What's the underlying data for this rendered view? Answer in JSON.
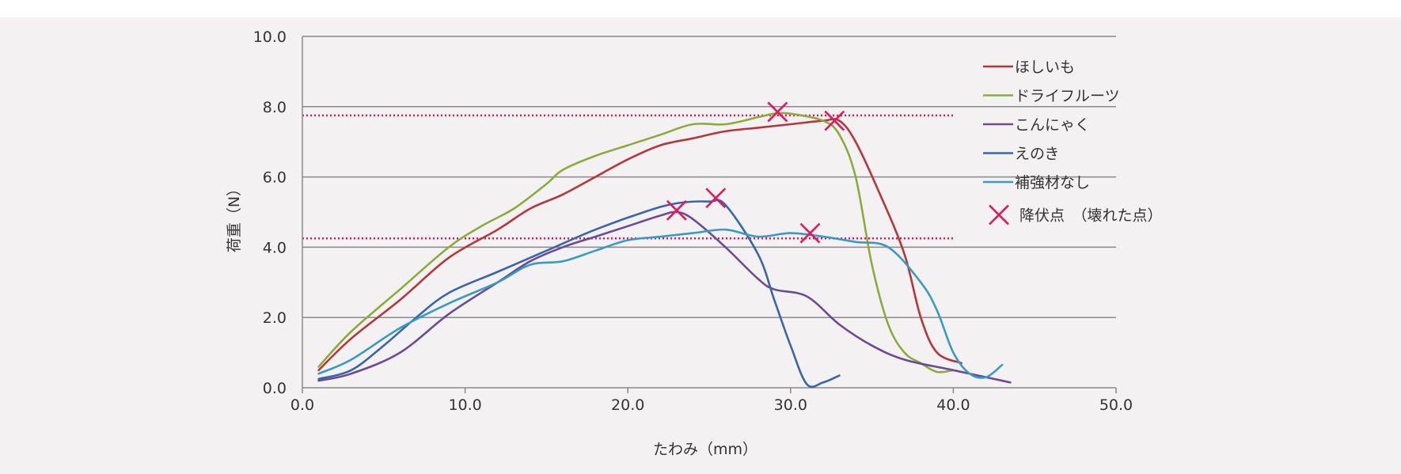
{
  "chart_data": {
    "type": "line",
    "title": "",
    "xlabel": "たわみ（mm）",
    "ylabel": "荷重（N）",
    "xlim": [
      0,
      50
    ],
    "ylim": [
      0,
      10
    ],
    "xticks": [
      "0.0",
      "10.0",
      "20.0",
      "30.0",
      "40.0",
      "50.0"
    ],
    "yticks": [
      "0.0",
      "2.0",
      "4.0",
      "6.0",
      "8.0",
      "10.0"
    ],
    "grid": "horizontal",
    "legend_position": "right",
    "series": [
      {
        "name": "ほしいも",
        "color": "#b5373b",
        "points": [
          [
            1,
            0.5
          ],
          [
            3,
            1.4
          ],
          [
            6,
            2.5
          ],
          [
            9,
            3.7
          ],
          [
            12,
            4.5
          ],
          [
            14,
            5.1
          ],
          [
            16,
            5.5
          ],
          [
            18,
            6.0
          ],
          [
            20,
            6.5
          ],
          [
            22,
            6.9
          ],
          [
            24,
            7.1
          ],
          [
            26,
            7.3
          ],
          [
            28,
            7.4
          ],
          [
            30,
            7.5
          ],
          [
            32,
            7.6
          ],
          [
            33,
            7.6
          ],
          [
            34,
            7.0
          ],
          [
            35.5,
            5.5
          ],
          [
            37,
            3.8
          ],
          [
            38,
            2.0
          ],
          [
            39,
            1.0
          ],
          [
            40.5,
            0.7
          ]
        ]
      },
      {
        "name": "ドライフルーツ",
        "color": "#8cab3c",
        "points": [
          [
            1,
            0.6
          ],
          [
            3,
            1.6
          ],
          [
            6,
            2.8
          ],
          [
            9,
            4.0
          ],
          [
            11,
            4.6
          ],
          [
            13,
            5.1
          ],
          [
            15,
            5.8
          ],
          [
            16,
            6.2
          ],
          [
            18,
            6.6
          ],
          [
            20,
            6.9
          ],
          [
            22,
            7.2
          ],
          [
            24,
            7.5
          ],
          [
            26,
            7.5
          ],
          [
            28,
            7.7
          ],
          [
            29,
            7.8
          ],
          [
            30,
            7.8
          ],
          [
            32,
            7.6
          ],
          [
            33,
            7.2
          ],
          [
            34,
            6.0
          ],
          [
            35,
            3.5
          ],
          [
            36,
            1.8
          ],
          [
            37,
            1.0
          ],
          [
            38,
            0.7
          ],
          [
            39,
            0.45
          ],
          [
            40,
            0.5
          ]
        ]
      },
      {
        "name": "こんにゃく",
        "color": "#6a4c93",
        "points": [
          [
            1,
            0.2
          ],
          [
            3,
            0.4
          ],
          [
            6,
            1.0
          ],
          [
            9,
            2.1
          ],
          [
            12,
            3.0
          ],
          [
            14,
            3.6
          ],
          [
            16,
            4.0
          ],
          [
            18,
            4.3
          ],
          [
            20,
            4.6
          ],
          [
            22,
            4.9
          ],
          [
            23,
            5.0
          ],
          [
            24,
            4.8
          ],
          [
            26,
            4.0
          ],
          [
            28,
            3.1
          ],
          [
            29,
            2.8
          ],
          [
            31,
            2.6
          ],
          [
            33,
            1.8
          ],
          [
            35,
            1.2
          ],
          [
            37,
            0.8
          ],
          [
            40,
            0.5
          ],
          [
            43.5,
            0.15
          ]
        ]
      },
      {
        "name": "えのき",
        "color": "#3866a8",
        "points": [
          [
            1,
            0.25
          ],
          [
            3,
            0.5
          ],
          [
            5,
            1.2
          ],
          [
            7,
            2.0
          ],
          [
            9,
            2.7
          ],
          [
            12,
            3.3
          ],
          [
            15,
            3.9
          ],
          [
            18,
            4.5
          ],
          [
            21,
            5.0
          ],
          [
            23,
            5.25
          ],
          [
            25,
            5.3
          ],
          [
            26,
            5.2
          ],
          [
            28,
            3.8
          ],
          [
            29,
            2.5
          ],
          [
            30,
            1.2
          ],
          [
            31,
            0.1
          ],
          [
            32,
            0.15
          ],
          [
            33,
            0.35
          ]
        ]
      },
      {
        "name": "補強材なし",
        "color": "#3a9bc1",
        "points": [
          [
            1,
            0.4
          ],
          [
            3,
            0.8
          ],
          [
            6,
            1.7
          ],
          [
            9,
            2.4
          ],
          [
            12,
            3.0
          ],
          [
            14,
            3.5
          ],
          [
            16,
            3.6
          ],
          [
            18,
            3.9
          ],
          [
            20,
            4.2
          ],
          [
            22,
            4.3
          ],
          [
            24,
            4.4
          ],
          [
            26,
            4.5
          ],
          [
            28,
            4.3
          ],
          [
            30,
            4.4
          ],
          [
            32,
            4.3
          ],
          [
            34,
            4.15
          ],
          [
            36,
            4.0
          ],
          [
            38,
            3.0
          ],
          [
            39,
            2.2
          ],
          [
            40,
            1.0
          ],
          [
            41,
            0.4
          ],
          [
            42,
            0.3
          ],
          [
            43,
            0.65
          ]
        ]
      }
    ],
    "yield_points": {
      "label": "降伏点　（壊れた点）",
      "color": "#e0195a",
      "points": [
        [
          29.2,
          7.85
        ],
        [
          32.7,
          7.6
        ],
        [
          23.0,
          5.05
        ],
        [
          25.4,
          5.4
        ],
        [
          31.2,
          4.4
        ]
      ]
    },
    "reference_lines": [
      {
        "y": 7.75,
        "x_start": 0,
        "x_end": 40,
        "color": "#e0195a",
        "style": "dotted"
      },
      {
        "y": 4.25,
        "x_start": 0,
        "x_end": 40,
        "color": "#e0195a",
        "style": "dotted"
      }
    ]
  }
}
